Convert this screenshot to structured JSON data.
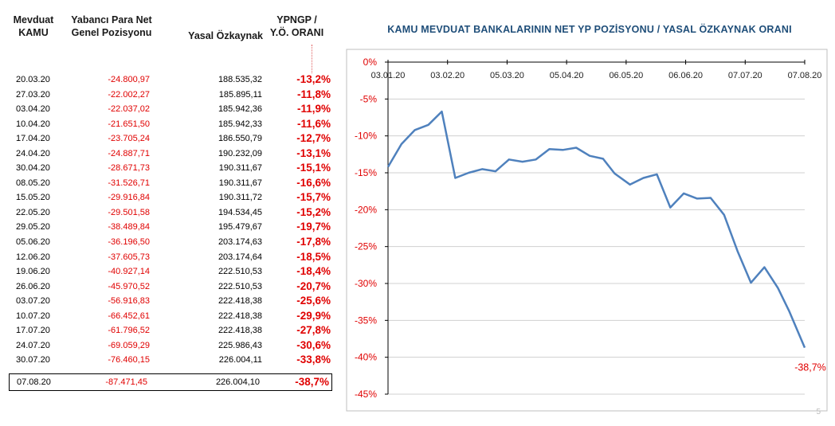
{
  "table": {
    "headers": {
      "col1_line1": "Mevduat",
      "col1_line2": "KAMU",
      "col2_line1": "Yabancı Para Net",
      "col2_line2": "Genel Pozisyonu",
      "col3": "Yasal Özkaynak",
      "col4_line1": "YPNGP /",
      "col4_line2": "Y.Ö. ORANI"
    },
    "rows": [
      {
        "date": "20.03.20",
        "ypngp": "-24.800,97",
        "ozkaynak": "188.535,32",
        "ratio": "-13,2%"
      },
      {
        "date": "27.03.20",
        "ypngp": "-22.002,27",
        "ozkaynak": "185.895,11",
        "ratio": "-11,8%"
      },
      {
        "date": "03.04.20",
        "ypngp": "-22.037,02",
        "ozkaynak": "185.942,36",
        "ratio": "-11,9%"
      },
      {
        "date": "10.04.20",
        "ypngp": "-21.651,50",
        "ozkaynak": "185.942,33",
        "ratio": "-11,6%"
      },
      {
        "date": "17.04.20",
        "ypngp": "-23.705,24",
        "ozkaynak": "186.550,79",
        "ratio": "-12,7%"
      },
      {
        "date": "24.04.20",
        "ypngp": "-24.887,71",
        "ozkaynak": "190.232,09",
        "ratio": "-13,1%"
      },
      {
        "date": "30.04.20",
        "ypngp": "-28.671,73",
        "ozkaynak": "190.311,67",
        "ratio": "-15,1%"
      },
      {
        "date": "08.05.20",
        "ypngp": "-31.526,71",
        "ozkaynak": "190.311,67",
        "ratio": "-16,6%"
      },
      {
        "date": "15.05.20",
        "ypngp": "-29.916,84",
        "ozkaynak": "190.311,72",
        "ratio": "-15,7%"
      },
      {
        "date": "22.05.20",
        "ypngp": "-29.501,58",
        "ozkaynak": "194.534,45",
        "ratio": "-15,2%"
      },
      {
        "date": "29.05.20",
        "ypngp": "-38.489,84",
        "ozkaynak": "195.479,67",
        "ratio": "-19,7%"
      },
      {
        "date": "05.06.20",
        "ypngp": "-36.196,50",
        "ozkaynak": "203.174,63",
        "ratio": "-17,8%"
      },
      {
        "date": "12.06.20",
        "ypngp": "-37.605,73",
        "ozkaynak": "203.174,64",
        "ratio": "-18,5%"
      },
      {
        "date": "19.06.20",
        "ypngp": "-40.927,14",
        "ozkaynak": "222.510,53",
        "ratio": "-18,4%"
      },
      {
        "date": "26.06.20",
        "ypngp": "-45.970,52",
        "ozkaynak": "222.510,53",
        "ratio": "-20,7%"
      },
      {
        "date": "03.07.20",
        "ypngp": "-56.916,83",
        "ozkaynak": "222.418,38",
        "ratio": "-25,6%"
      },
      {
        "date": "10.07.20",
        "ypngp": "-66.452,61",
        "ozkaynak": "222.418,38",
        "ratio": "-29,9%"
      },
      {
        "date": "17.07.20",
        "ypngp": "-61.796,52",
        "ozkaynak": "222.418,38",
        "ratio": "-27,8%"
      },
      {
        "date": "24.07.20",
        "ypngp": "-69.059,29",
        "ozkaynak": "225.986,43",
        "ratio": "-30,6%"
      },
      {
        "date": "30.07.20",
        "ypngp": "-76.460,15",
        "ozkaynak": "226.004,11",
        "ratio": "-33,8%"
      },
      {
        "date": "07.08.20",
        "ypngp": "-87.471,45",
        "ozkaynak": "226.004,10",
        "ratio": "-38,7%"
      }
    ]
  },
  "chart_data": {
    "type": "line",
    "title": "KAMU MEVDUAT BANKALARININ NET YP POZİSYONU / YASAL ÖZKAYNAK ORANI",
    "x_tick_labels": [
      "03.01.20",
      "03.02.20",
      "05.03.20",
      "05.04.20",
      "06.05.20",
      "06.06.20",
      "07.07.20",
      "07.08.20"
    ],
    "y_tick_labels": [
      "0%",
      "-5%",
      "-10%",
      "-15%",
      "-20%",
      "-25%",
      "-30%",
      "-35%",
      "-40%",
      "-45%"
    ],
    "ylim": [
      -45,
      0
    ],
    "grid": true,
    "line_color": "#4f81bd",
    "x_axis_position": "top",
    "annotation": "-38,7%",
    "series": [
      {
        "points": [
          {
            "x": "2020-01-03",
            "y": -14.2
          },
          {
            "x": "2020-01-10",
            "y": -11.1
          },
          {
            "x": "2020-01-17",
            "y": -9.2
          },
          {
            "x": "2020-01-24",
            "y": -8.5
          },
          {
            "x": "2020-01-31",
            "y": -6.7
          },
          {
            "x": "2020-02-07",
            "y": -15.7
          },
          {
            "x": "2020-02-14",
            "y": -15.0
          },
          {
            "x": "2020-02-21",
            "y": -14.5
          },
          {
            "x": "2020-02-28",
            "y": -14.8
          },
          {
            "x": "2020-03-06",
            "y": -13.2
          },
          {
            "x": "2020-03-13",
            "y": -13.5
          },
          {
            "x": "2020-03-20",
            "y": -13.2
          },
          {
            "x": "2020-03-27",
            "y": -11.8
          },
          {
            "x": "2020-04-03",
            "y": -11.9
          },
          {
            "x": "2020-04-10",
            "y": -11.6
          },
          {
            "x": "2020-04-17",
            "y": -12.7
          },
          {
            "x": "2020-04-24",
            "y": -13.1
          },
          {
            "x": "2020-04-30",
            "y": -15.1
          },
          {
            "x": "2020-05-08",
            "y": -16.6
          },
          {
            "x": "2020-05-15",
            "y": -15.7
          },
          {
            "x": "2020-05-22",
            "y": -15.2
          },
          {
            "x": "2020-05-29",
            "y": -19.7
          },
          {
            "x": "2020-06-05",
            "y": -17.8
          },
          {
            "x": "2020-06-12",
            "y": -18.5
          },
          {
            "x": "2020-06-19",
            "y": -18.4
          },
          {
            "x": "2020-06-26",
            "y": -20.7
          },
          {
            "x": "2020-07-03",
            "y": -25.6
          },
          {
            "x": "2020-07-10",
            "y": -29.9
          },
          {
            "x": "2020-07-17",
            "y": -27.8
          },
          {
            "x": "2020-07-24",
            "y": -30.6
          },
          {
            "x": "2020-07-30",
            "y": -33.8
          },
          {
            "x": "2020-08-07",
            "y": -38.7
          }
        ]
      }
    ]
  },
  "page_number": "5"
}
